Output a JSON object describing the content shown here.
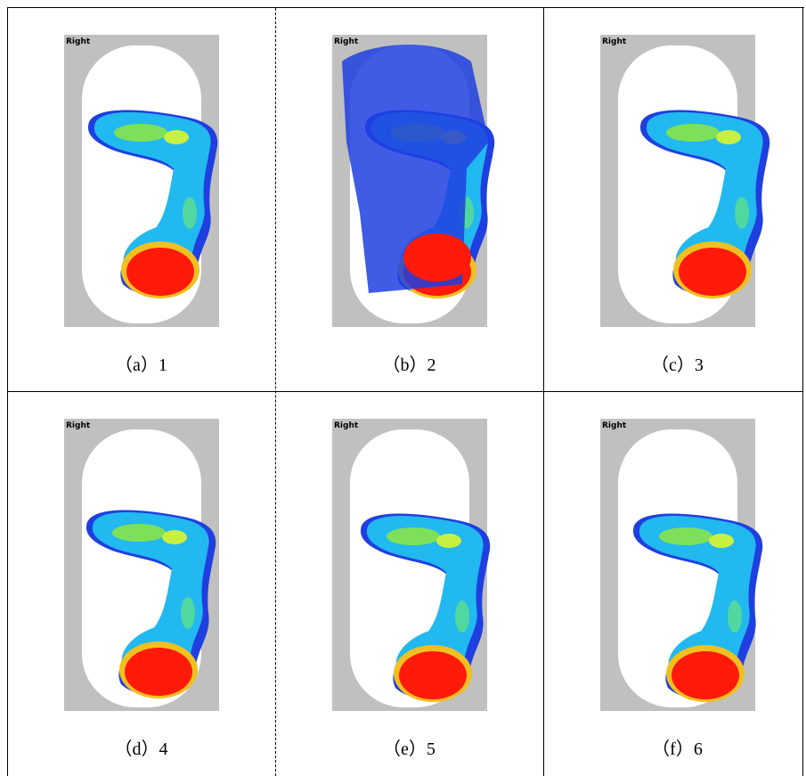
{
  "panels": [
    {
      "label": "Right",
      "caption": "（a）1"
    },
    {
      "label": "Right",
      "caption": "（b）2"
    },
    {
      "label": "Right",
      "caption": "（c）3"
    },
    {
      "label": "Right",
      "caption": "（d）4"
    },
    {
      "label": "Right",
      "caption": "（e）5"
    },
    {
      "label": "Right",
      "caption": "（f）6"
    }
  ]
}
